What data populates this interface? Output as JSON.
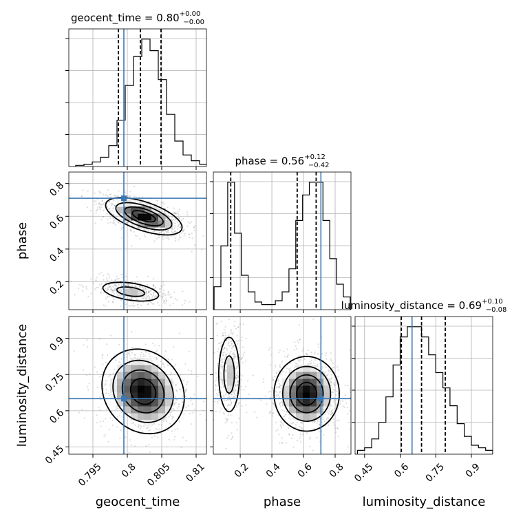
{
  "chart_data": {
    "type": "corner",
    "parameters": [
      "geocent_time",
      "phase",
      "luminosity_distance"
    ],
    "truths": {
      "geocent_time": 0.7995,
      "phase": 0.71,
      "luminosity_distance": 0.65
    },
    "titles": [
      {
        "param": "geocent_time",
        "prefix": "geocent_time = ",
        "median": "0.80",
        "plus": "+0.00",
        "minus": "−0.00"
      },
      {
        "param": "phase",
        "prefix": "phase = ",
        "median": "0.56",
        "plus": "+0.12",
        "minus": "−0.42"
      },
      {
        "param": "luminosity_distance",
        "prefix": "luminosity_distance = ",
        "median": "0.69",
        "plus": "+0.10",
        "minus": "−0.08"
      }
    ],
    "diagonal": [
      {
        "param": "geocent_time",
        "xlim": [
          0.7915,
          0.8115
        ],
        "bin_edges": [
          0.7925,
          0.7937,
          0.7949,
          0.7961,
          0.7973,
          0.7985,
          0.7997,
          0.8009,
          0.8021,
          0.8033,
          0.8045,
          0.8057,
          0.8069,
          0.8081,
          0.8093,
          0.8105,
          0.8117
        ],
        "counts": [
          1,
          2,
          4,
          8,
          18,
          40,
          70,
          95,
          110,
          100,
          75,
          45,
          22,
          10,
          5,
          2
        ],
        "quantiles": [
          0.7987,
          0.8019,
          0.8049
        ],
        "xticks": [
          0.795,
          0.8,
          0.805,
          0.81
        ]
      },
      {
        "param": "phase",
        "xlim": [
          0.03,
          0.9
        ],
        "bin_edges": [
          0.035,
          0.078,
          0.121,
          0.164,
          0.207,
          0.25,
          0.293,
          0.336,
          0.379,
          0.422,
          0.465,
          0.508,
          0.551,
          0.594,
          0.637,
          0.68,
          0.723,
          0.766,
          0.809,
          0.852,
          0.895
        ],
        "counts": [
          18,
          50,
          100,
          60,
          27,
          14,
          6,
          4,
          4,
          7,
          14,
          32,
          70,
          90,
          100,
          100,
          70,
          40,
          20,
          10
        ],
        "quantiles": [
          0.14,
          0.56,
          0.68
        ],
        "xticks": [
          0.2,
          0.4,
          0.6,
          0.8
        ]
      },
      {
        "param": "luminosity_distance",
        "xlim": [
          0.41,
          0.99
        ],
        "bin_edges": [
          0.42,
          0.45,
          0.48,
          0.51,
          0.54,
          0.57,
          0.6,
          0.63,
          0.66,
          0.69,
          0.72,
          0.75,
          0.78,
          0.81,
          0.84,
          0.87,
          0.9,
          0.93,
          0.96,
          0.99
        ],
        "counts": [
          3,
          5,
          12,
          25,
          45,
          70,
          92,
          100,
          100,
          92,
          78,
          64,
          52,
          38,
          24,
          14,
          7,
          5,
          3
        ],
        "quantiles": [
          0.605,
          0.69,
          0.79
        ],
        "xticks": [
          0.45,
          0.6,
          0.75,
          0.9
        ]
      }
    ],
    "offdiagonal": [
      {
        "x": "geocent_time",
        "y": "phase",
        "ylim": [
          0.03,
          0.87
        ],
        "yticks": [
          0.2,
          0.4,
          0.6,
          0.8
        ],
        "modes": [
          {
            "cx": 0.8024,
            "cy": 0.6,
            "sx": 0.0027,
            "sy": 0.055,
            "rho": -0.6,
            "w": 1.0
          },
          {
            "cx": 0.8005,
            "cy": 0.14,
            "sx": 0.0025,
            "sy": 0.035,
            "rho": -0.4,
            "w": 0.45
          }
        ]
      },
      {
        "x": "geocent_time",
        "y": "luminosity_distance",
        "ylim": [
          0.42,
          0.99
        ],
        "yticks": [
          0.45,
          0.6,
          0.75,
          0.9
        ],
        "modes": [
          {
            "cx": 0.8023,
            "cy": 0.68,
            "sx": 0.0029,
            "sy": 0.085,
            "rho": -0.15,
            "w": 1.0
          }
        ]
      },
      {
        "x": "phase",
        "y": "luminosity_distance",
        "ylim": [
          0.42,
          0.99
        ],
        "yticks": [],
        "modes": [
          {
            "cx": 0.62,
            "cy": 0.67,
            "sx": 0.1,
            "sy": 0.075,
            "rho": 0.0,
            "w": 1.0
          },
          {
            "cx": 0.13,
            "cy": 0.75,
            "sx": 0.04,
            "sy": 0.095,
            "rho": 0.0,
            "w": 0.45
          }
        ]
      }
    ],
    "axis_labels": {
      "x": [
        "geocent_time",
        "phase",
        "luminosity_distance"
      ],
      "y": [
        "phase",
        "luminosity_distance"
      ]
    },
    "grid": true
  }
}
